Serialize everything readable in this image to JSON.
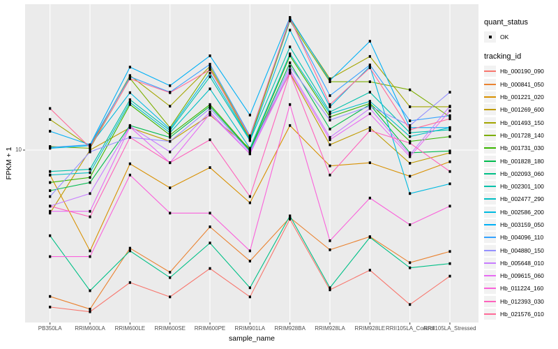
{
  "legend": {
    "quant_status_title": "quant_status",
    "quant_status_items": [
      {
        "label": "OK",
        "symbol": "black-point"
      }
    ],
    "tracking_title": "tracking_id"
  },
  "chart_data": {
    "type": "line",
    "title": "",
    "xlabel": "sample_name",
    "ylabel": "FPKM + 1",
    "yscale": "log10",
    "ytick_labels": [
      "10"
    ],
    "ytick_values": [
      10
    ],
    "ylim": [
      1.5,
      48
    ],
    "grid": "on",
    "panel_bg": "#EBEBEB",
    "grid_color": "#FFFFFF",
    "axis_text_color": "#4D4D4D",
    "point_color": "#000000",
    "legend_position": "right",
    "categories": [
      "PB350LA",
      "RRIM600LA",
      "RRIM600LE",
      "RRIM600SE",
      "RRIM600PE",
      "RRIM901LA",
      "RRIM928BA",
      "RRIM928LA",
      "RRIM928LE",
      "RRII105LA_Control",
      "RRII105LA_Stressed"
    ],
    "series": [
      {
        "name": "Hb_000190_090",
        "color": "#F8766D",
        "values": [
          1.78,
          1.69,
          2.33,
          1.99,
          2.72,
          1.99,
          4.68,
          2.15,
          2.67,
          1.83,
          2.5
        ]
      },
      {
        "name": "Hb_000841_050",
        "color": "#EA8331",
        "values": [
          2.0,
          1.74,
          3.4,
          2.61,
          4.3,
          2.95,
          4.76,
          3.34,
          3.86,
          2.9,
          3.28
        ]
      },
      {
        "name": "Hb_001221_020",
        "color": "#D89000",
        "values": [
          7.6,
          3.3,
          8.6,
          6.6,
          8.25,
          5.6,
          13.1,
          8.4,
          8.7,
          7.5,
          8.8
        ]
      },
      {
        "name": "Hb_001269_600",
        "color": "#C09B00",
        "values": [
          5.0,
          10.0,
          12.8,
          11.0,
          14.7,
          10.2,
          23.3,
          10.6,
          12.8,
          8.65,
          9.7
        ]
      },
      {
        "name": "Hb_001493_150",
        "color": "#A3A500",
        "values": [
          14.0,
          10.4,
          22.7,
          16.2,
          25.1,
          11.5,
          42.3,
          21.9,
          28.0,
          16.1,
          16.1
        ]
      },
      {
        "name": "Hb_001728_140",
        "color": "#7CAE00",
        "values": [
          10.4,
          10.2,
          22.0,
          12.8,
          24.5,
          11.3,
          41.4,
          21.2,
          21.2,
          19.4,
          14.4
        ]
      },
      {
        "name": "Hb_001731_030",
        "color": "#39B600",
        "values": [
          7.0,
          7.4,
          16.5,
          11.8,
          16.5,
          10.0,
          28.2,
          14.4,
          16.7,
          11.0,
          11.6
        ]
      },
      {
        "name": "Hb_001828_180",
        "color": "#00BB4E",
        "values": [
          6.4,
          7.0,
          13.1,
          11.5,
          16.2,
          9.9,
          26.1,
          12.6,
          16.5,
          9.7,
          9.9
        ]
      },
      {
        "name": "Hb_002093_060",
        "color": "#00C087",
        "values": [
          3.9,
          2.13,
          3.3,
          2.46,
          3.6,
          2.2,
          4.85,
          2.2,
          3.83,
          2.74,
          2.87
        ]
      },
      {
        "name": "Hb_002301_100",
        "color": "#00C1AB",
        "values": [
          7.9,
          8.1,
          17.4,
          12.4,
          22.4,
          11.1,
          31.1,
          15.2,
          18.9,
          12.1,
          12.5
        ]
      },
      {
        "name": "Hb_002477_290",
        "color": "#00BFC4",
        "values": [
          7.6,
          7.8,
          16.9,
          12.1,
          19.6,
          10.2,
          28.8,
          14.9,
          17.1,
          11.6,
          12.8
        ]
      },
      {
        "name": "Hb_002586_200",
        "color": "#00BAE0",
        "values": [
          10.2,
          10.5,
          18.8,
          12.6,
          23.3,
          11.2,
          37.4,
          16.1,
          25.1,
          6.2,
          6.9
        ]
      },
      {
        "name": "Hb_003159_050",
        "color": "#00B0F6",
        "values": [
          12.3,
          10.6,
          24.9,
          20.3,
          28.2,
          14.7,
          43.0,
          21.5,
          33.1,
          12.8,
          12.8
        ]
      },
      {
        "name": "Hb_004096_110",
        "color": "#35A2FF",
        "values": [
          10.3,
          10.6,
          22.4,
          18.9,
          25.7,
          11.7,
          42.0,
          18.2,
          25.5,
          13.8,
          14.6
        ]
      },
      {
        "name": "Hb_004880_150",
        "color": "#9590FF",
        "values": [
          6.0,
          9.8,
          11.5,
          11.0,
          15.8,
          9.8,
          25.1,
          13.9,
          16.2,
          13.1,
          18.9
        ]
      },
      {
        "name": "Hb_005648_010",
        "color": "#C77CFF",
        "values": [
          5.4,
          6.2,
          13.0,
          9.8,
          15.2,
          9.6,
          24.2,
          11.5,
          15.8,
          9.5,
          16.2
        ]
      },
      {
        "name": "Hb_009615_060",
        "color": "#E76BF3",
        "values": [
          5.1,
          5.1,
          12.9,
          8.7,
          14.9,
          9.6,
          23.6,
          11.2,
          14.9,
          9.3,
          15.4
        ]
      },
      {
        "name": "Hb_011224_160",
        "color": "#FA62DB",
        "values": [
          3.1,
          3.1,
          7.6,
          5.0,
          5.0,
          3.3,
          16.5,
          3.69,
          5.9,
          4.4,
          5.4
        ]
      },
      {
        "name": "Hb_012393_030",
        "color": "#FF62BC",
        "values": [
          5.4,
          4.8,
          11.5,
          8.7,
          11.2,
          6.0,
          23.3,
          7.6,
          12.4,
          10.8,
          7.9
        ]
      },
      {
        "name": "Hb_021576_010",
        "color": "#FF6A98",
        "values": [
          15.8,
          10.3,
          21.9,
          18.8,
          24.2,
          11.6,
          42.7,
          16.5,
          24.7,
          12.5,
          14.1
        ]
      }
    ]
  }
}
